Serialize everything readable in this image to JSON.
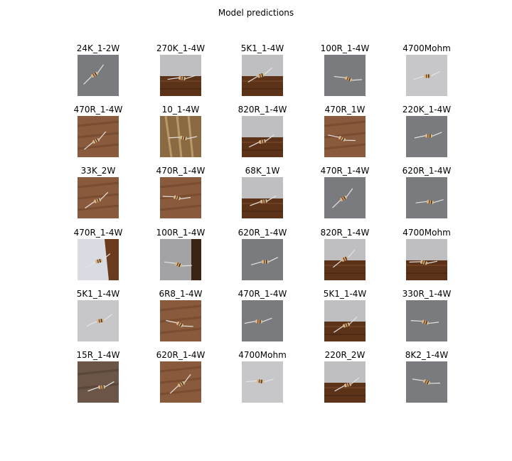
{
  "figure": {
    "title": "Model predictions"
  },
  "predictions": [
    {
      "label": "24K_1-2W",
      "scene": "gray"
    },
    {
      "label": "270K_1-4W",
      "scene": "wall-wood"
    },
    {
      "label": "5K1_1-4W",
      "scene": "wall-wood"
    },
    {
      "label": "100R_1-4W",
      "scene": "gray"
    },
    {
      "label": "4700Mohm",
      "scene": "light"
    },
    {
      "label": "470R_1-4W",
      "scene": "wood"
    },
    {
      "label": "10_1-4W",
      "scene": "wood-light"
    },
    {
      "label": "820R_1-4W",
      "scene": "wall-wood"
    },
    {
      "label": "470R_1W",
      "scene": "wood"
    },
    {
      "label": "220K_1-4W",
      "scene": "gray"
    },
    {
      "label": "33K_2W",
      "scene": "wood"
    },
    {
      "label": "470R_1-4W",
      "scene": "wood"
    },
    {
      "label": "68K_1W",
      "scene": "wall-wood"
    },
    {
      "label": "470R_1-4W",
      "scene": "gray"
    },
    {
      "label": "620R_1-4W",
      "scene": "gray"
    },
    {
      "label": "470R_1-4W",
      "scene": "paper-wood"
    },
    {
      "label": "100R_1-4W",
      "scene": "gray-dark"
    },
    {
      "label": "620R_1-4W",
      "scene": "gray"
    },
    {
      "label": "820R_1-4W",
      "scene": "wall-wood"
    },
    {
      "label": "4700Mohm",
      "scene": "wall-wood"
    },
    {
      "label": "5K1_1-4W",
      "scene": "light"
    },
    {
      "label": "6R8_1-4W",
      "scene": "wood"
    },
    {
      "label": "470R_1-4W",
      "scene": "gray"
    },
    {
      "label": "5K1_1-4W",
      "scene": "wall-wood"
    },
    {
      "label": "330R_1-4W",
      "scene": "gray"
    },
    {
      "label": "15R_1-4W",
      "scene": "wood-dark"
    },
    {
      "label": "620R_1-4W",
      "scene": "wood"
    },
    {
      "label": "4700Mohm",
      "scene": "light"
    },
    {
      "label": "220R_2W",
      "scene": "wall-wood"
    },
    {
      "label": "8K2_1-4W",
      "scene": "gray"
    }
  ]
}
